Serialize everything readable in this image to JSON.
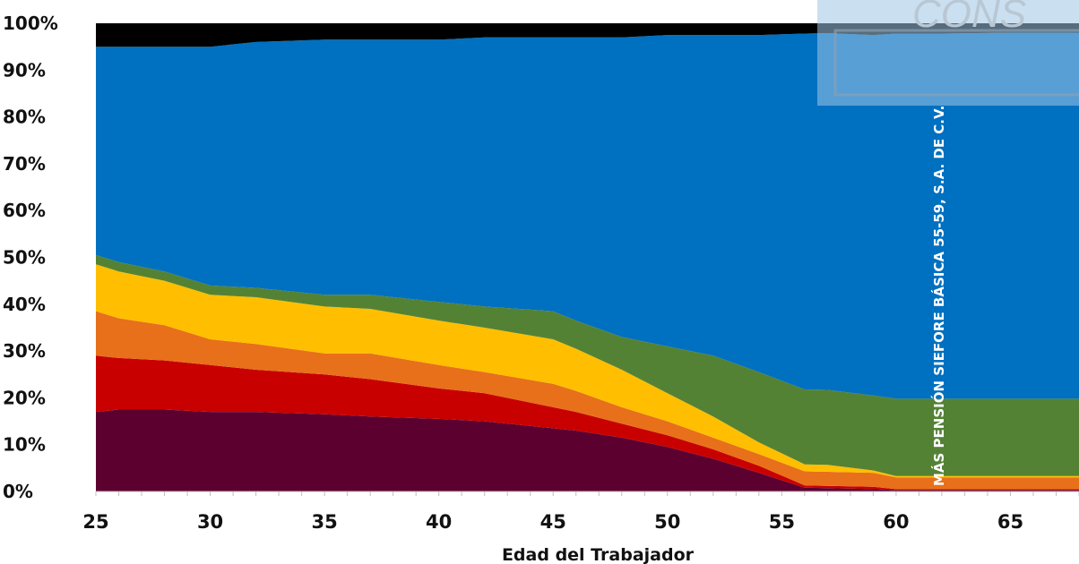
{
  "chart_data": {
    "type": "area",
    "stacked": true,
    "percent": true,
    "title": "",
    "xlabel": "Edad del Trabajador",
    "ylabel": "",
    "xlim": [
      25,
      68
    ],
    "ylim": [
      0,
      100
    ],
    "x_ticks": [
      25,
      30,
      35,
      40,
      45,
      50,
      55,
      60,
      65
    ],
    "y_ticks": [
      "0%",
      "10%",
      "20%",
      "30%",
      "40%",
      "50%",
      "60%",
      "70%",
      "80%",
      "90%",
      "100%"
    ],
    "grid": false,
    "legend": "none",
    "overlay_text": "MÁS PENSIÓN SIEFORE BÁSICA 55-59, S.A. DE C.V.",
    "watermark_text": "CONS",
    "x": [
      25,
      26,
      28,
      30,
      32,
      35,
      37,
      40,
      42,
      45,
      46,
      48,
      50,
      52,
      54,
      56,
      57,
      59,
      60,
      62,
      65,
      68
    ],
    "series": [
      {
        "color": "#5c0030",
        "values": [
          17,
          17.5,
          17.5,
          17,
          17,
          16.5,
          16,
          15.5,
          15,
          13.5,
          13,
          11.5,
          9.5,
          7,
          4,
          0.8,
          0.7,
          0.5,
          0.3,
          0.3,
          0.3,
          0.3
        ]
      },
      {
        "color": "#c80000",
        "values": [
          12,
          11,
          10.5,
          10,
          9,
          8.5,
          8,
          6.5,
          6,
          4.5,
          4,
          3,
          2.5,
          2,
          1.5,
          0.5,
          0.5,
          0.5,
          0.2,
          0.2,
          0.2,
          0.2
        ]
      },
      {
        "color": "#e8701a",
        "values": [
          9.5,
          8.5,
          7.5,
          5.5,
          5.5,
          4.5,
          5.5,
          5,
          4.5,
          5,
          4.5,
          3.5,
          3,
          2.5,
          2.5,
          3,
          3,
          3,
          2.5,
          2.5,
          2.5,
          2.5
        ]
      },
      {
        "color": "#ffbf00",
        "values": [
          10,
          10,
          9.5,
          9.5,
          10,
          10,
          9.5,
          9.5,
          9.5,
          9.5,
          9,
          8,
          6,
          4.5,
          2.5,
          1.5,
          1.5,
          0.5,
          0.3,
          0.3,
          0.3,
          0.3
        ]
      },
      {
        "color": "#548235",
        "values": [
          2,
          2,
          2,
          2,
          2,
          2.5,
          3,
          4,
          4.5,
          6,
          6,
          7,
          10,
          13,
          15,
          16,
          16,
          16,
          16.5,
          16.5,
          16.5,
          16.5
        ]
      },
      {
        "color": "#0070c0",
        "values": [
          44.5,
          46,
          48,
          51,
          52.5,
          54.5,
          54.5,
          56,
          57.5,
          58.5,
          60.5,
          64,
          66.5,
          68.5,
          72,
          76,
          76.2,
          77,
          78,
          78,
          78.2,
          78.2
        ]
      },
      {
        "color": "#000000",
        "values": [
          5,
          5,
          5,
          5,
          4,
          3.5,
          3.5,
          3.5,
          3,
          3,
          3,
          3,
          2.5,
          2.5,
          2.5,
          2.2,
          2.1,
          2.5,
          2.2,
          2.2,
          2,
          2
        ]
      }
    ]
  }
}
